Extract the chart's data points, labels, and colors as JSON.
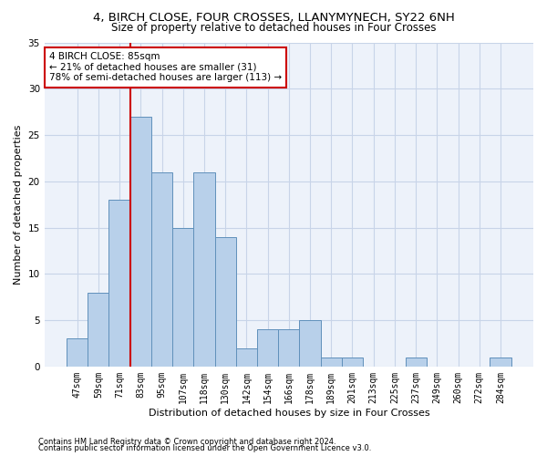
{
  "title": "4, BIRCH CLOSE, FOUR CROSSES, LLANYMYNECH, SY22 6NH",
  "subtitle": "Size of property relative to detached houses in Four Crosses",
  "xlabel": "Distribution of detached houses by size in Four Crosses",
  "ylabel": "Number of detached properties",
  "categories": [
    "47sqm",
    "59sqm",
    "71sqm",
    "83sqm",
    "95sqm",
    "107sqm",
    "118sqm",
    "130sqm",
    "142sqm",
    "154sqm",
    "166sqm",
    "178sqm",
    "189sqm",
    "201sqm",
    "213sqm",
    "225sqm",
    "237sqm",
    "249sqm",
    "260sqm",
    "272sqm",
    "284sqm"
  ],
  "values": [
    3,
    8,
    18,
    27,
    21,
    15,
    21,
    14,
    2,
    4,
    4,
    5,
    1,
    1,
    0,
    0,
    1,
    0,
    0,
    0,
    1
  ],
  "bar_color": "#b8d0ea",
  "bar_edge_color": "#6090bb",
  "grid_color": "#c8d4e8",
  "background_color": "#edf2fa",
  "annotation_text": "4 BIRCH CLOSE: 85sqm\n← 21% of detached houses are smaller (31)\n78% of semi-detached houses are larger (113) →",
  "annotation_box_color": "#ffffff",
  "annotation_box_edge": "#cc0000",
  "vline_color": "#cc0000",
  "ylim": [
    0,
    35
  ],
  "yticks": [
    0,
    5,
    10,
    15,
    20,
    25,
    30,
    35
  ],
  "footer1": "Contains HM Land Registry data © Crown copyright and database right 2024.",
  "footer2": "Contains public sector information licensed under the Open Government Licence v3.0.",
  "title_fontsize": 9.5,
  "subtitle_fontsize": 8.5,
  "xlabel_fontsize": 8,
  "ylabel_fontsize": 8,
  "tick_fontsize": 7,
  "annotation_fontsize": 7.5,
  "footer_fontsize": 6
}
